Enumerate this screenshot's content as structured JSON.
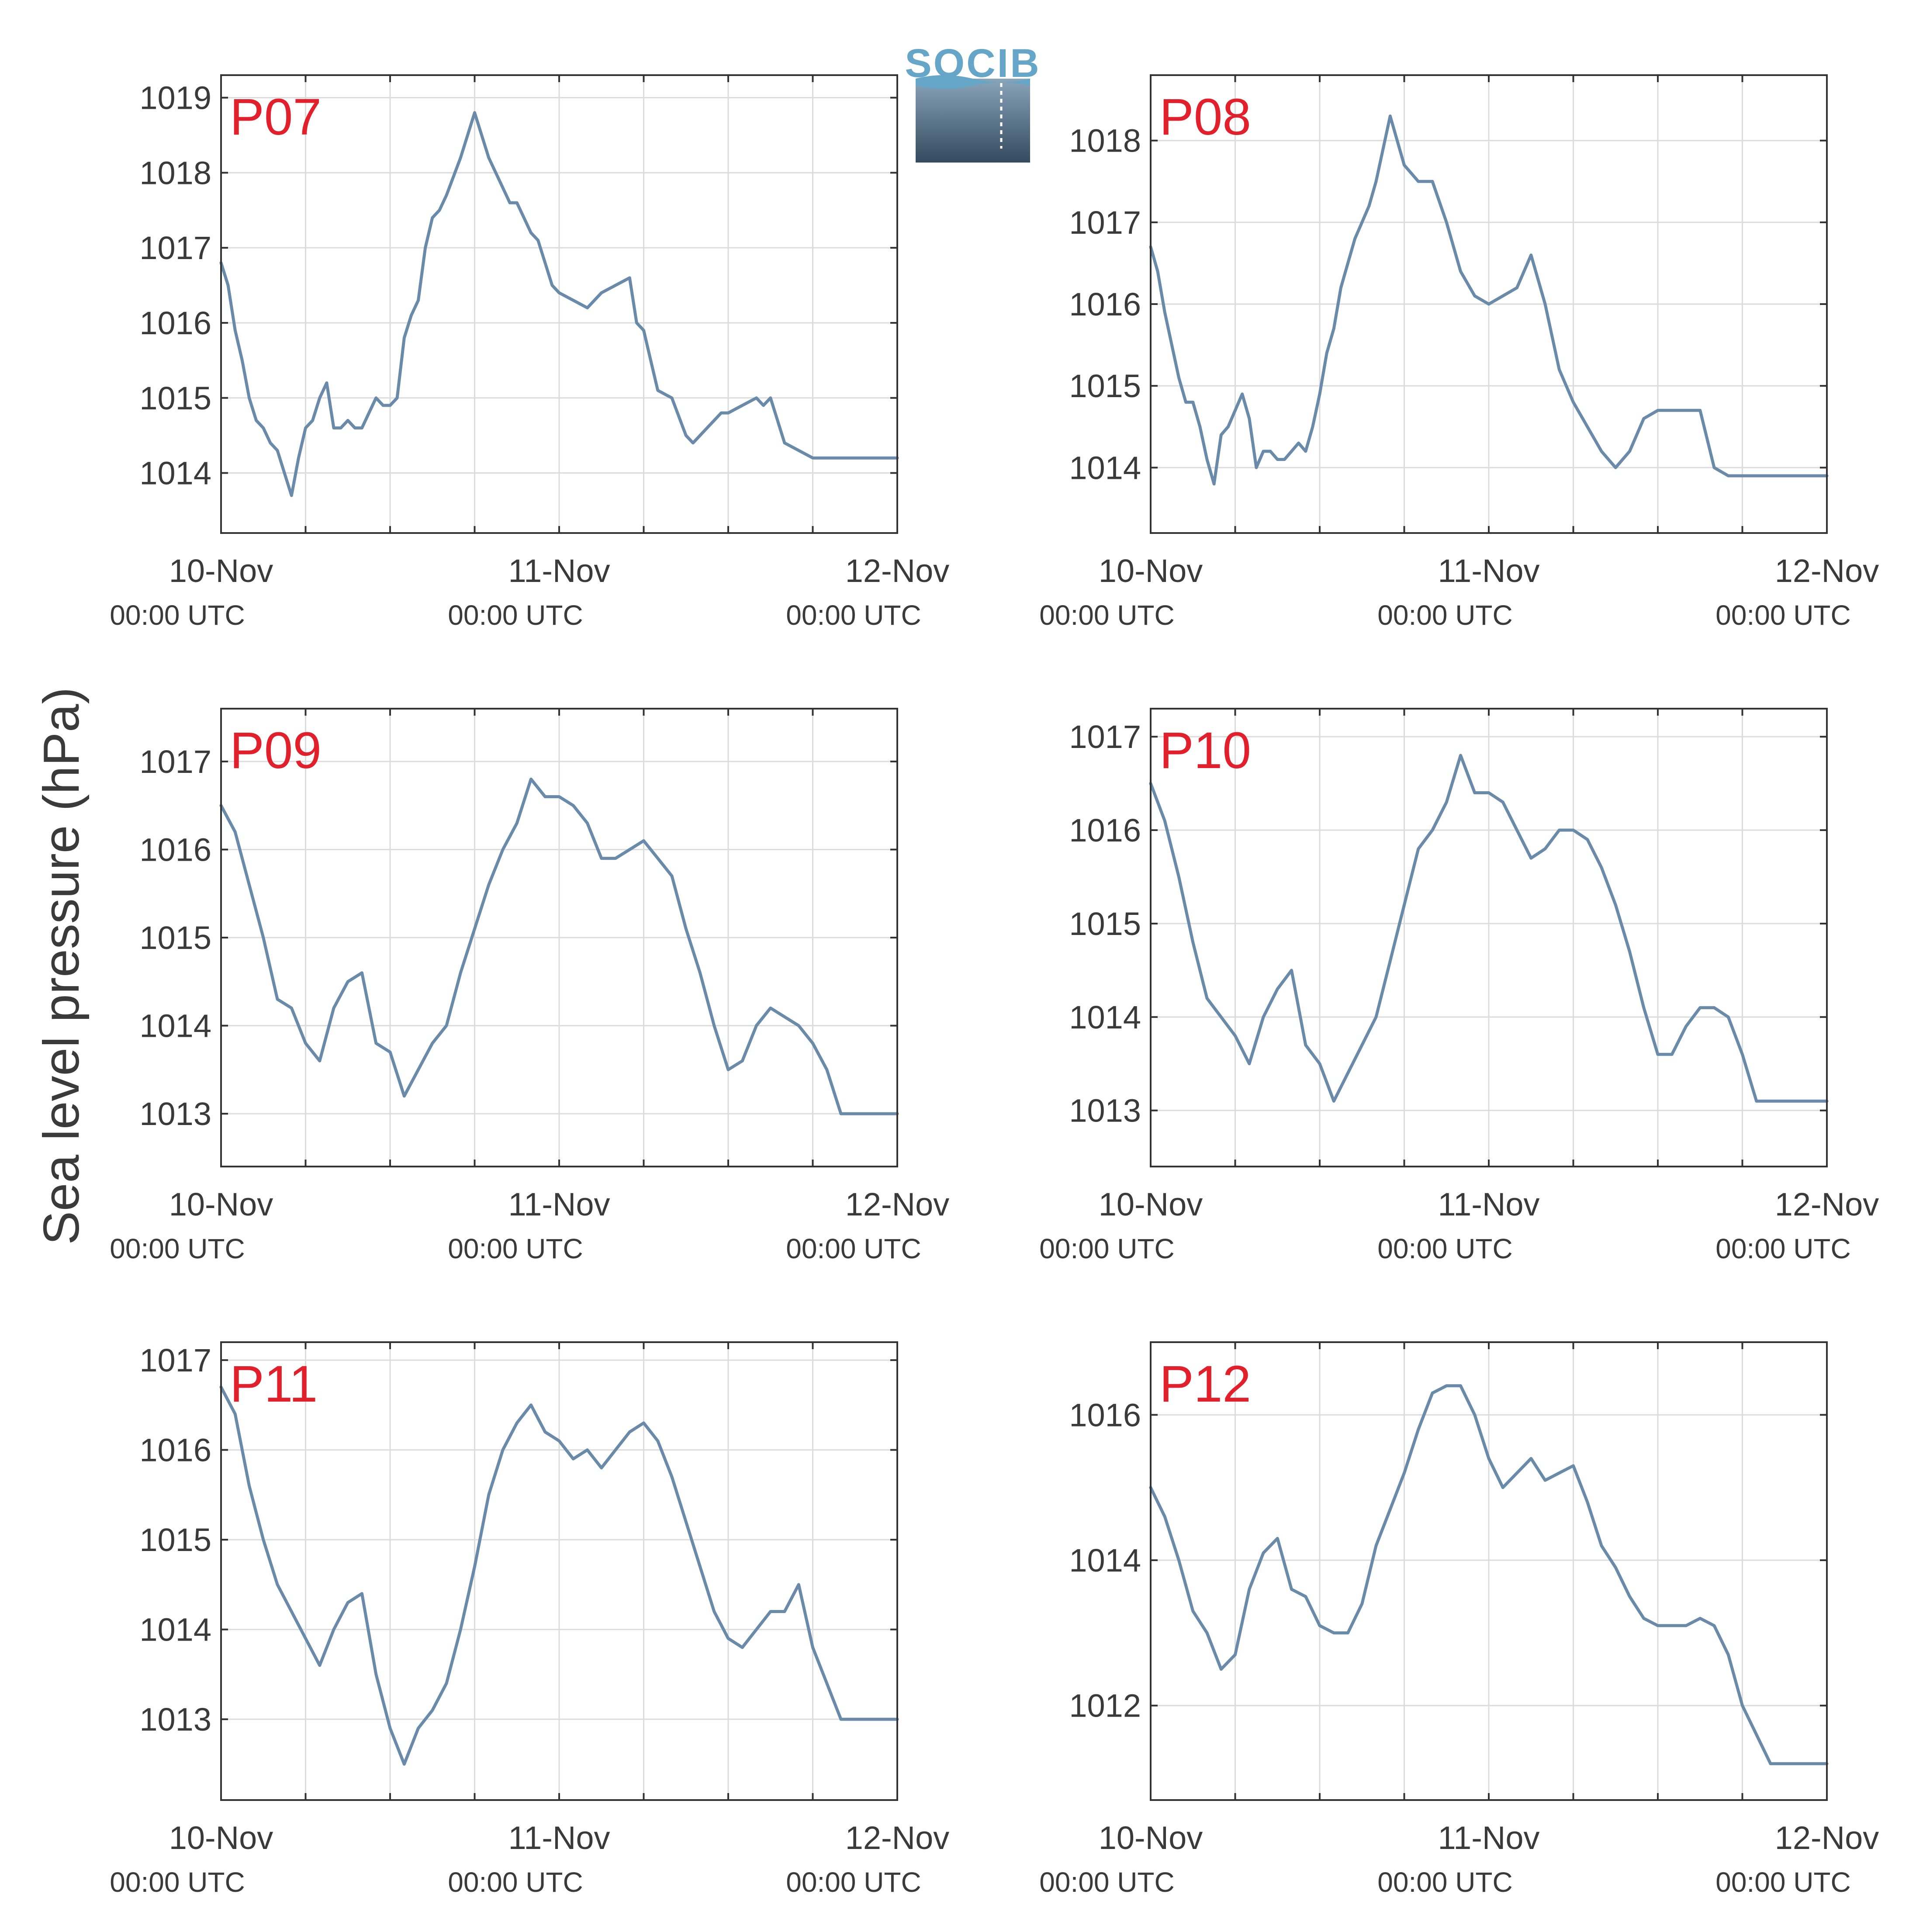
{
  "figure": {
    "ylabel": "Sea level pressure (hPa)",
    "logo_text": "SOCIB",
    "grid": true,
    "line_color": "#6a8aaa",
    "label_color": "#e2202b"
  },
  "chart_data": [
    {
      "type": "line",
      "panel_label": "P07",
      "ylim": [
        1013.2,
        1019.3
      ],
      "yticks": [
        "1014",
        "1015",
        "1016",
        "1017",
        "1018",
        "1019"
      ],
      "xticks": [
        {
          "date": "10-Nov",
          "time": "00:00 UTC"
        },
        {
          "date": "11-Nov",
          "time": "00:00 UTC"
        },
        {
          "date": "12-Nov",
          "time": "00:00 UTC"
        }
      ],
      "xlim_hours": [
        0,
        48
      ],
      "series": [
        {
          "hours": [
            0,
            0.5,
            1,
            1.5,
            2,
            2.5,
            3,
            3.5,
            4,
            4.5,
            5,
            5.5,
            6,
            6.5,
            7,
            7.5,
            8,
            8.5,
            9,
            9.5,
            10,
            10.5,
            11,
            11.5,
            12,
            12.5,
            13,
            13.5,
            14,
            14.5,
            15,
            15.5,
            16,
            17,
            18,
            19,
            20,
            20.5,
            21,
            21.5,
            22,
            22.5,
            23,
            23.5,
            24,
            25,
            26,
            27,
            28,
            29,
            29.5,
            30,
            30.5,
            31,
            32,
            33,
            33.5,
            34,
            34.5,
            35,
            35.5,
            36,
            37,
            38,
            38.5,
            39,
            40,
            41,
            42,
            43,
            44,
            45,
            45.5,
            46,
            46.5,
            47,
            47.5,
            48
          ],
          "values": [
            1016.8,
            1016.5,
            1015.9,
            1015.5,
            1015.0,
            1014.7,
            1014.6,
            1014.4,
            1014.3,
            1014.0,
            1013.7,
            1014.2,
            1014.6,
            1014.7,
            1015.0,
            1015.2,
            1014.6,
            1014.6,
            1014.7,
            1014.6,
            1014.6,
            1014.8,
            1015.0,
            1014.9,
            1014.9,
            1015.0,
            1015.8,
            1016.1,
            1016.3,
            1017.0,
            1017.4,
            1017.5,
            1017.7,
            1018.2,
            1018.8,
            1018.2,
            1017.8,
            1017.6,
            1017.6,
            1017.4,
            1017.2,
            1017.1,
            1016.8,
            1016.5,
            1016.4,
            1016.3,
            1016.2,
            1016.4,
            1016.5,
            1016.6,
            1016.0,
            1015.9,
            1015.5,
            1015.1,
            1015.0,
            1014.5,
            1014.4,
            1014.5,
            1014.6,
            1014.7,
            1014.8,
            1014.8,
            1014.9,
            1015.0,
            1014.9,
            1015.0,
            1014.4,
            1014.3,
            1014.2,
            1014.2,
            1014.2,
            1014.2,
            1014.2,
            1014.2,
            1014.2,
            1014.2,
            1014.2,
            1014.2
          ]
        }
      ]
    },
    {
      "type": "line",
      "panel_label": "P08",
      "ylim": [
        1013.2,
        1018.8
      ],
      "yticks": [
        "1014",
        "1015",
        "1016",
        "1017",
        "1018"
      ],
      "xticks": [
        {
          "date": "10-Nov",
          "time": "00:00 UTC"
        },
        {
          "date": "11-Nov",
          "time": "00:00 UTC"
        },
        {
          "date": "12-Nov",
          "time": "00:00 UTC"
        }
      ],
      "xlim_hours": [
        0,
        48
      ],
      "series": [
        {
          "hours": [
            0,
            0.5,
            1,
            1.5,
            2,
            2.5,
            3,
            3.5,
            4,
            4.5,
            5,
            5.5,
            6,
            6.5,
            7,
            7.5,
            8,
            8.5,
            9,
            9.5,
            10,
            10.5,
            11,
            11.5,
            12,
            12.5,
            13,
            13.5,
            14,
            14.5,
            15,
            15.5,
            16,
            17,
            18,
            19,
            20,
            21,
            22,
            23,
            24,
            25,
            26,
            27,
            28,
            29,
            30,
            31,
            32,
            33,
            34,
            35,
            36,
            37,
            38,
            39,
            40,
            41,
            42,
            42.5,
            43,
            44,
            45,
            46,
            47,
            47.5,
            48
          ],
          "values": [
            1016.7,
            1016.4,
            1015.9,
            1015.5,
            1015.1,
            1014.8,
            1014.8,
            1014.5,
            1014.1,
            1013.8,
            1014.4,
            1014.5,
            1014.7,
            1014.9,
            1014.6,
            1014.0,
            1014.2,
            1014.2,
            1014.1,
            1014.1,
            1014.2,
            1014.3,
            1014.2,
            1014.5,
            1014.9,
            1015.4,
            1015.7,
            1016.2,
            1016.5,
            1016.8,
            1017.0,
            1017.2,
            1017.5,
            1018.3,
            1017.7,
            1017.5,
            1017.5,
            1017.0,
            1016.4,
            1016.1,
            1016.0,
            1016.1,
            1016.2,
            1016.6,
            1016.0,
            1015.2,
            1014.8,
            1014.5,
            1014.2,
            1014.0,
            1014.2,
            1014.6,
            1014.7,
            1014.7,
            1014.7,
            1014.7,
            1014.0,
            1013.9,
            1013.9,
            1013.9,
            1013.9,
            1013.9,
            1013.9,
            1013.9,
            1013.9,
            1013.9,
            1013.9
          ]
        }
      ]
    },
    {
      "type": "line",
      "panel_label": "P09",
      "ylim": [
        1012.4,
        1017.6
      ],
      "yticks": [
        "1013",
        "1014",
        "1015",
        "1016",
        "1017"
      ],
      "xticks": [
        {
          "date": "10-Nov",
          "time": "00:00 UTC"
        },
        {
          "date": "11-Nov",
          "time": "00:00 UTC"
        },
        {
          "date": "12-Nov",
          "time": "00:00 UTC"
        }
      ],
      "xlim_hours": [
        0,
        48
      ],
      "series": [
        {
          "hours": [
            0,
            1,
            2,
            3,
            4,
            5,
            6,
            7,
            8,
            9,
            10,
            11,
            12,
            13,
            14,
            15,
            16,
            17,
            18,
            19,
            20,
            21,
            22,
            23,
            24,
            25,
            26,
            27,
            28,
            29,
            30,
            31,
            32,
            33,
            34,
            35,
            36,
            37,
            38,
            39,
            40,
            41,
            42,
            43,
            44,
            45,
            46,
            47,
            48
          ],
          "values": [
            1016.5,
            1016.2,
            1015.6,
            1015.0,
            1014.3,
            1014.2,
            1013.8,
            1013.6,
            1014.2,
            1014.5,
            1014.6,
            1013.8,
            1013.7,
            1013.2,
            1013.5,
            1013.8,
            1014.0,
            1014.6,
            1015.1,
            1015.6,
            1016.0,
            1016.3,
            1016.8,
            1016.6,
            1016.6,
            1016.5,
            1016.3,
            1015.9,
            1015.9,
            1016.0,
            1016.1,
            1015.9,
            1015.7,
            1015.1,
            1014.6,
            1014.0,
            1013.5,
            1013.6,
            1014.0,
            1014.2,
            1014.1,
            1014.0,
            1013.8,
            1013.5,
            1013.0,
            1013.0,
            1013.0,
            1013.0,
            1013.0
          ]
        }
      ]
    },
    {
      "type": "line",
      "panel_label": "P10",
      "ylim": [
        1012.4,
        1017.3
      ],
      "yticks": [
        "1013",
        "1014",
        "1015",
        "1016",
        "1017"
      ],
      "xticks": [
        {
          "date": "10-Nov",
          "time": "00:00 UTC"
        },
        {
          "date": "11-Nov",
          "time": "00:00 UTC"
        },
        {
          "date": "12-Nov",
          "time": "00:00 UTC"
        }
      ],
      "xlim_hours": [
        0,
        48
      ],
      "series": [
        {
          "hours": [
            0,
            1,
            2,
            3,
            4,
            5,
            6,
            7,
            8,
            9,
            10,
            11,
            12,
            13,
            14,
            15,
            16,
            17,
            18,
            19,
            20,
            21,
            22,
            23,
            24,
            25,
            26,
            27,
            28,
            29,
            30,
            31,
            32,
            33,
            34,
            35,
            36,
            37,
            38,
            39,
            40,
            41,
            42,
            43,
            44,
            45,
            46,
            47,
            48
          ],
          "values": [
            1016.5,
            1016.1,
            1015.5,
            1014.8,
            1014.2,
            1014.0,
            1013.8,
            1013.5,
            1014.0,
            1014.3,
            1014.5,
            1013.7,
            1013.5,
            1013.1,
            1013.4,
            1013.7,
            1014.0,
            1014.6,
            1015.2,
            1015.8,
            1016.0,
            1016.3,
            1016.8,
            1016.4,
            1016.4,
            1016.3,
            1016.0,
            1015.7,
            1015.8,
            1016.0,
            1016.0,
            1015.9,
            1015.6,
            1015.2,
            1014.7,
            1014.1,
            1013.6,
            1013.6,
            1013.9,
            1014.1,
            1014.1,
            1014.0,
            1013.6,
            1013.1,
            1013.1,
            1013.1,
            1013.1,
            1013.1,
            1013.1
          ]
        }
      ]
    },
    {
      "type": "line",
      "panel_label": "P11",
      "ylim": [
        1012.1,
        1017.2
      ],
      "yticks": [
        "1013",
        "1014",
        "1015",
        "1016",
        "1017"
      ],
      "xticks": [
        {
          "date": "10-Nov",
          "time": "00:00 UTC"
        },
        {
          "date": "11-Nov",
          "time": "00:00 UTC"
        },
        {
          "date": "12-Nov",
          "time": "00:00 UTC"
        }
      ],
      "xlim_hours": [
        0,
        48
      ],
      "series": [
        {
          "hours": [
            0,
            1,
            2,
            3,
            4,
            5,
            6,
            7,
            8,
            9,
            10,
            11,
            12,
            13,
            14,
            15,
            16,
            17,
            18,
            19,
            20,
            21,
            22,
            23,
            24,
            25,
            26,
            27,
            28,
            29,
            30,
            31,
            32,
            33,
            34,
            35,
            36,
            37,
            38,
            39,
            40,
            41,
            42,
            43,
            44,
            45,
            46,
            47,
            48
          ],
          "values": [
            1016.7,
            1016.4,
            1015.6,
            1015.0,
            1014.5,
            1014.2,
            1013.9,
            1013.6,
            1014.0,
            1014.3,
            1014.4,
            1013.5,
            1012.9,
            1012.5,
            1012.9,
            1013.1,
            1013.4,
            1014.0,
            1014.7,
            1015.5,
            1016.0,
            1016.3,
            1016.5,
            1016.2,
            1016.1,
            1015.9,
            1016.0,
            1015.8,
            1016.0,
            1016.2,
            1016.3,
            1016.1,
            1015.7,
            1015.2,
            1014.7,
            1014.2,
            1013.9,
            1013.8,
            1014.0,
            1014.2,
            1014.2,
            1014.5,
            1013.8,
            1013.4,
            1013.0,
            1013.0,
            1013.0,
            1013.0,
            1013.0
          ]
        }
      ]
    },
    {
      "type": "line",
      "panel_label": "P12",
      "ylim": [
        1010.7,
        1017.0
      ],
      "yticks": [
        "1012",
        "1014",
        "1016"
      ],
      "xticks": [
        {
          "date": "10-Nov",
          "time": "00:00 UTC"
        },
        {
          "date": "11-Nov",
          "time": "00:00 UTC"
        },
        {
          "date": "12-Nov",
          "time": "00:00 UTC"
        }
      ],
      "xlim_hours": [
        0,
        48
      ],
      "series": [
        {
          "hours": [
            0,
            1,
            2,
            3,
            4,
            5,
            6,
            7,
            8,
            9,
            10,
            11,
            12,
            13,
            14,
            15,
            16,
            17,
            18,
            19,
            20,
            21,
            22,
            23,
            24,
            25,
            26,
            27,
            28,
            29,
            30,
            31,
            32,
            33,
            34,
            35,
            36,
            37,
            38,
            39,
            40,
            41,
            42,
            43,
            44,
            45,
            46,
            47,
            48
          ],
          "values": [
            1015.0,
            1014.6,
            1014.0,
            1013.3,
            1013.0,
            1012.5,
            1012.7,
            1013.6,
            1014.1,
            1014.3,
            1013.6,
            1013.5,
            1013.1,
            1013.0,
            1013.0,
            1013.4,
            1014.2,
            1014.7,
            1015.2,
            1015.8,
            1016.3,
            1016.4,
            1016.4,
            1016.0,
            1015.4,
            1015.0,
            1015.2,
            1015.4,
            1015.1,
            1015.2,
            1015.3,
            1014.8,
            1014.2,
            1013.9,
            1013.5,
            1013.2,
            1013.1,
            1013.1,
            1013.1,
            1013.2,
            1013.1,
            1012.7,
            1012.0,
            1011.6,
            1011.2,
            1011.2,
            1011.2,
            1011.2,
            1011.2
          ]
        }
      ]
    }
  ]
}
